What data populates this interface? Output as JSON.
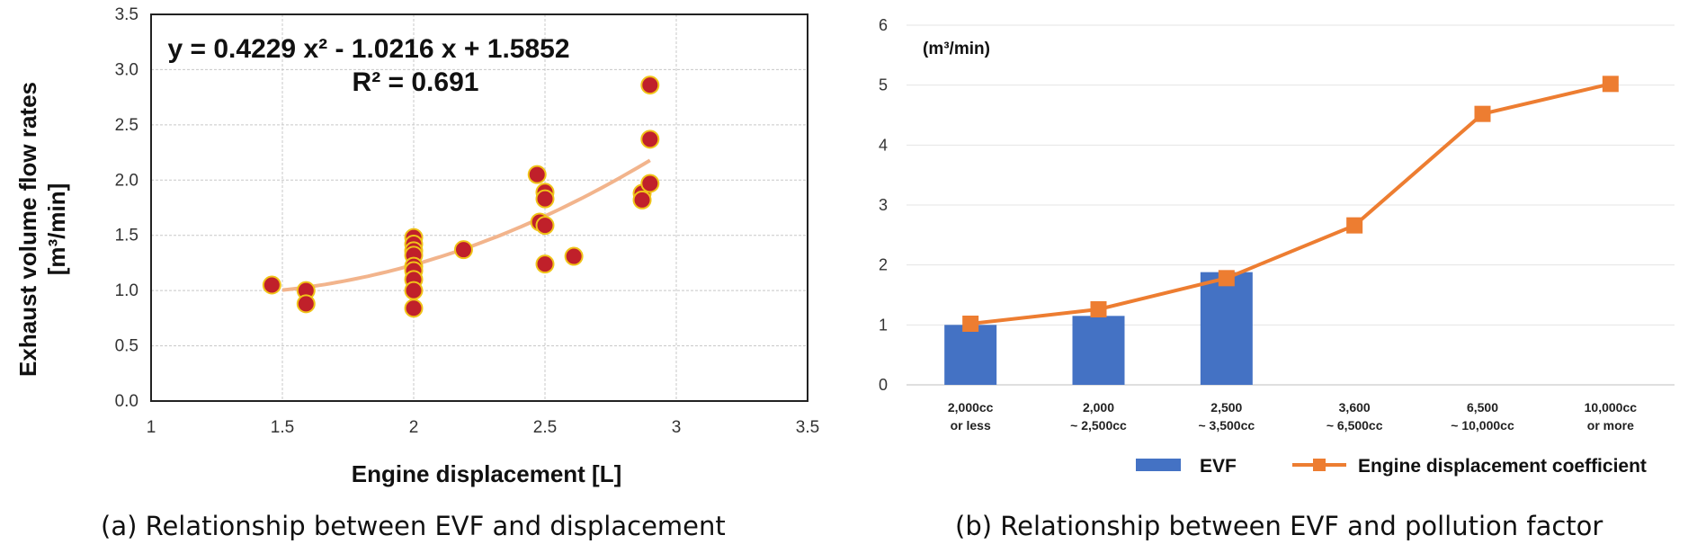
{
  "chart_data": [
    {
      "type": "scatter",
      "caption": "(a) Relationship between EVF and displacement",
      "xlabel": "Engine displacement [L]",
      "ylabel_line1": "Exhaust volume flow rates",
      "ylabel_line2": "[m³/min]",
      "xlim": [
        1,
        3.5
      ],
      "ylim": [
        0,
        3.5
      ],
      "x_ticks": [
        "1",
        "1.5",
        "2",
        "2.5",
        "3",
        "3.5"
      ],
      "y_ticks": [
        "0.0",
        "0.5",
        "1.0",
        "1.5",
        "2.0",
        "2.5",
        "3.0",
        "3.5"
      ],
      "grid": true,
      "equation": "y = 0.4229 x² - 1.0216 x + 1.5852",
      "r_squared": "R² = 0.691",
      "trendline": {
        "a": 0.4229,
        "b": -1.0216,
        "c": 1.5852,
        "x_start": 1.5,
        "x_end": 2.9
      },
      "colors": {
        "point_fill": "#c0202a",
        "point_edge": "#f0c419",
        "trend": "#f2b48c"
      },
      "points": [
        {
          "x": 1.46,
          "y": 1.05
        },
        {
          "x": 1.59,
          "y": 1.0
        },
        {
          "x": 1.59,
          "y": 0.88
        },
        {
          "x": 2.0,
          "y": 1.48
        },
        {
          "x": 2.0,
          "y": 1.42
        },
        {
          "x": 2.0,
          "y": 1.36
        },
        {
          "x": 2.0,
          "y": 1.32
        },
        {
          "x": 2.0,
          "y": 1.22
        },
        {
          "x": 2.0,
          "y": 1.18
        },
        {
          "x": 2.0,
          "y": 1.1
        },
        {
          "x": 2.0,
          "y": 1.0
        },
        {
          "x": 2.0,
          "y": 0.84
        },
        {
          "x": 2.19,
          "y": 1.37
        },
        {
          "x": 2.47,
          "y": 2.05
        },
        {
          "x": 2.48,
          "y": 1.62
        },
        {
          "x": 2.5,
          "y": 1.89
        },
        {
          "x": 2.5,
          "y": 1.83
        },
        {
          "x": 2.5,
          "y": 1.59
        },
        {
          "x": 2.5,
          "y": 1.24
        },
        {
          "x": 2.61,
          "y": 1.31
        },
        {
          "x": 2.87,
          "y": 1.88
        },
        {
          "x": 2.87,
          "y": 1.82
        },
        {
          "x": 2.9,
          "y": 2.86
        },
        {
          "x": 2.9,
          "y": 2.37
        },
        {
          "x": 2.9,
          "y": 1.97
        }
      ]
    },
    {
      "type": "bar",
      "caption": "(b) Relationship between EVF and pollution factor",
      "unit_label": "(m³/min)",
      "ylim": [
        0,
        6
      ],
      "y_ticks": [
        "0",
        "1",
        "2",
        "3",
        "4",
        "5",
        "6"
      ],
      "grid": true,
      "categories": [
        {
          "line1": "2,000cc",
          "line2": "or less"
        },
        {
          "line1": "2,000",
          "line2": "~ 2,500cc"
        },
        {
          "line1": "2,500",
          "line2": "~ 3,500cc"
        },
        {
          "line1": "3,600",
          "line2": "~ 6,500cc"
        },
        {
          "line1": "6,500",
          "line2": "~ 10,000cc"
        },
        {
          "line1": "10,000cc",
          "line2": "or more"
        }
      ],
      "series": [
        {
          "name": "EVF",
          "kind": "bar",
          "color": "#4472c4",
          "values": [
            1.0,
            1.15,
            1.88,
            null,
            null,
            null
          ]
        },
        {
          "name": "Engine displacement coefficient",
          "kind": "line",
          "color": "#ed7d31",
          "values": [
            1.02,
            1.26,
            1.78,
            2.66,
            4.52,
            5.02
          ]
        }
      ],
      "legend": "bottom-right"
    }
  ]
}
